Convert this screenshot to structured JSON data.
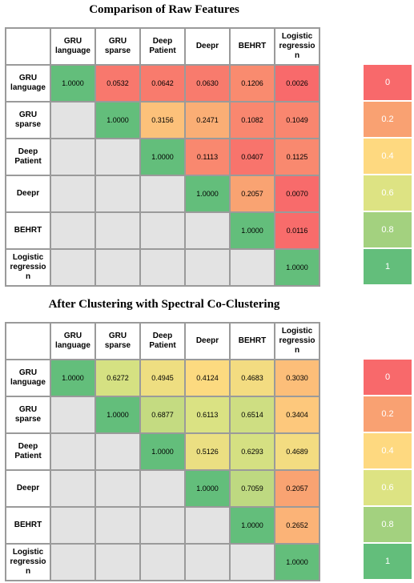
{
  "chart_data": [
    {
      "type": "heatmap",
      "title": "Comparison of Raw Features",
      "columns": [
        "GRU language",
        "GRU sparse",
        "Deep Patient",
        "Deepr",
        "BEHRT",
        "Logistic regression"
      ],
      "column_labels": [
        "GRU\nlanguage",
        "GRU\nsparse",
        "Deep\nPatient",
        "Deepr",
        "BEHRT",
        "Logistic\nregressio\nn"
      ],
      "rows": [
        "GRU language",
        "GRU sparse",
        "Deep Patient",
        "Deepr",
        "BEHRT",
        "Logistic regression"
      ],
      "row_labels": [
        "GRU\nlanguage",
        "GRU\nsparse",
        "Deep\nPatient",
        "Deepr",
        "BEHRT",
        "Logistic\nregressio\nn"
      ],
      "values": [
        [
          "1.0000",
          "0.0532",
          "0.0642",
          "0.0630",
          "0.1206",
          "0.0026"
        ],
        [
          null,
          "1.0000",
          "0.3156",
          "0.2471",
          "0.1082",
          "0.1049"
        ],
        [
          null,
          null,
          "1.0000",
          "0.1113",
          "0.0407",
          "0.1125"
        ],
        [
          null,
          null,
          null,
          "1.0000",
          "0.2057",
          "0.0070"
        ],
        [
          null,
          null,
          null,
          null,
          "1.0000",
          "0.0116"
        ],
        [
          null,
          null,
          null,
          null,
          null,
          "1.0000"
        ]
      ],
      "legend": {
        "labels": [
          "0",
          "0.2",
          "0.4",
          "0.6",
          "0.8",
          "1"
        ],
        "colors": [
          "#f8696b",
          "#f9a172",
          "#fed980",
          "#dde383",
          "#a3d17f",
          "#63be7b"
        ]
      }
    },
    {
      "type": "heatmap",
      "title": "After Clustering with Spectral Co-Clustering",
      "columns": [
        "GRU language",
        "GRU sparse",
        "Deep Patient",
        "Deepr",
        "BEHRT",
        "Logistic regression"
      ],
      "column_labels": [
        "GRU\nlanguage",
        "GRU\nsparse",
        "Deep\nPatient",
        "Deepr",
        "BEHRT",
        "Logistic\nregressio\nn"
      ],
      "rows": [
        "GRU language",
        "GRU sparse",
        "Deep Patient",
        "Deepr",
        "BEHRT",
        "Logistic regression"
      ],
      "row_labels": [
        "GRU\nlanguage",
        "GRU\nsparse",
        "Deep\nPatient",
        "Deepr",
        "BEHRT",
        "Logistic\nregressio\nn"
      ],
      "values": [
        [
          "1.0000",
          "0.6272",
          "0.4945",
          "0.4124",
          "0.4683",
          "0.3030"
        ],
        [
          null,
          "1.0000",
          "0.6877",
          "0.6113",
          "0.6514",
          "0.3404"
        ],
        [
          null,
          null,
          "1.0000",
          "0.5126",
          "0.6293",
          "0.4689"
        ],
        [
          null,
          null,
          null,
          "1.0000",
          "0.7059",
          "0.2057"
        ],
        [
          null,
          null,
          null,
          null,
          "1.0000",
          "0.2652"
        ],
        [
          null,
          null,
          null,
          null,
          null,
          "1.0000"
        ]
      ],
      "legend": {
        "labels": [
          "0",
          "0.2",
          "0.4",
          "0.6",
          "0.8",
          "1"
        ],
        "colors": [
          "#f8696b",
          "#f9a172",
          "#fed980",
          "#dde383",
          "#a3d17f",
          "#63be7b"
        ]
      }
    }
  ]
}
